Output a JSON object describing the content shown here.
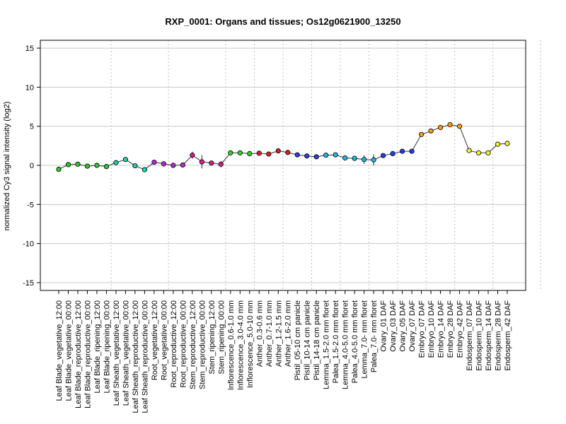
{
  "chart_data": {
    "type": "line",
    "title": "RXP_0001: Organs and tissues; Os12g0621900_13250",
    "xlabel": "",
    "ylabel": "normalized Cy3 signal intensity (log2)",
    "ylim": [
      -16,
      16
    ],
    "yticks": [
      -15,
      -10,
      -5,
      0,
      5,
      10,
      15
    ],
    "grid": true,
    "group_boundaries_after_index": [
      5,
      11,
      17,
      20,
      23,
      26,
      29,
      32,
      35,
      38,
      41,
      45,
      50
    ],
    "categories": [
      "Leaf Blade_vegetative_12:00",
      "Leaf Blade_vegetative_00:00",
      "Leaf Blade_reproductive_12:00",
      "Leaf Blade_reproductive_00:00",
      "Leaf Blade_ripening_12:00",
      "Leaf Blade_ripening_00:00",
      "Leaf Sheath_vegetative_12:00",
      "Leaf Sheath_vegetative_00:00",
      "Leaf Sheath_reproductive_12:00",
      "Leaf Sheath_reproductive_00:00",
      "Root_vegetative_12:00",
      "Root_vegetative_00:00",
      "Root_reproductive_12:00",
      "Root_reproductive_00:00",
      "Stem_reproductive_12:00",
      "Stem_reproductive_00:00",
      "Stem_ripening_12:00",
      "Stem_ripening_00:00",
      "Inflorescence_0.6-1.0 mm",
      "Inflorescence_3.0-4.0 mm",
      "Inflorescence_5.0-10 mm",
      "Anther_0.3-0.6 mm",
      "Anther_0.7-1.0 mm",
      "Anther_1.2-1.5 mm",
      "Anther_1.6-2.0 mm",
      "Pistil_05-10 cm panicle",
      "Pistil_10-14 cm panicle",
      "Pistil_14-18 cm panicle",
      "Lemma_1.5-2.0 mm floret",
      "Palea_1.5-2.0 mm floret",
      "Lemma_4.0-5.0 mm floret",
      "Palea_4.0-5.0 mm floret",
      "Lemma_7.0- mm floret",
      "Palea_7.0- mm floret",
      "Ovary_01 DAF",
      "Ovary_03 DAF",
      "Ovary_05 DAF",
      "Ovary_07 DAF",
      "Embryo_07 DAF",
      "Embryo_10 DAF",
      "Embryo_14 DAF",
      "Embryo_28 DAF",
      "Embryo_42 DAF",
      "Endosperm_07 DAF",
      "Endosperm_10 DAF",
      "Endosperm_14 DAF",
      "Endosperm_28 DAF",
      "Endosperm_42 DAF"
    ],
    "values": [
      -0.5,
      0.1,
      0.15,
      -0.1,
      0.0,
      -0.15,
      0.35,
      0.75,
      -0.05,
      -0.55,
      0.4,
      0.2,
      0.0,
      0.05,
      1.3,
      0.45,
      0.3,
      0.15,
      1.6,
      1.6,
      1.5,
      1.55,
      1.45,
      1.85,
      1.65,
      1.35,
      1.2,
      1.1,
      1.3,
      1.35,
      0.95,
      0.9,
      0.75,
      0.7,
      1.25,
      1.5,
      1.8,
      1.8,
      3.95,
      4.4,
      4.85,
      5.2,
      5.0,
      1.9,
      1.6,
      1.6,
      2.7,
      2.8
    ],
    "errors": [
      0.25,
      0.1,
      0.1,
      0.1,
      0.1,
      0.1,
      0.15,
      0.2,
      0.15,
      0.15,
      0.2,
      0.35,
      0.35,
      0.1,
      0.45,
      0.85,
      0.15,
      0.4,
      0.15,
      0.1,
      0.1,
      0.15,
      0.2,
      0.2,
      0.15,
      0.15,
      0.1,
      0.15,
      0.1,
      0.1,
      0.1,
      0.1,
      0.55,
      0.7,
      0.15,
      0.1,
      0.1,
      0.1,
      0.2,
      0.2,
      0.1,
      0.15,
      0.1,
      0.15,
      0.1,
      0.1,
      0.15,
      0.1
    ],
    "point_colors": [
      "#2ec52e",
      "#2ec52e",
      "#2ec52e",
      "#2ec52e",
      "#2ec52e",
      "#2ec52e",
      "#1ad0b0",
      "#1ad0b0",
      "#1ad0b0",
      "#1ad0b0",
      "#b428d8",
      "#b428d8",
      "#b428d8",
      "#b428d8",
      "#d81c8c",
      "#d81c8c",
      "#d81c8c",
      "#d81c8c",
      "#33cc33",
      "#33cc33",
      "#33cc33",
      "#d62020",
      "#d62020",
      "#d62020",
      "#d62020",
      "#3a3adf",
      "#3a3adf",
      "#3a3adf",
      "#1ab8e0",
      "#1ab8e0",
      "#1ab8e0",
      "#1ab8e0",
      "#1ab8e0",
      "#1ab8e0",
      "#1e3ef0",
      "#1e3ef0",
      "#1e3ef0",
      "#1e3ef0",
      "#ff9a1a",
      "#ff9a1a",
      "#ff9a1a",
      "#ff9a1a",
      "#ff9a1a",
      "#f0f032",
      "#f0f032",
      "#f0f032",
      "#f0f032",
      "#f0f032"
    ]
  }
}
